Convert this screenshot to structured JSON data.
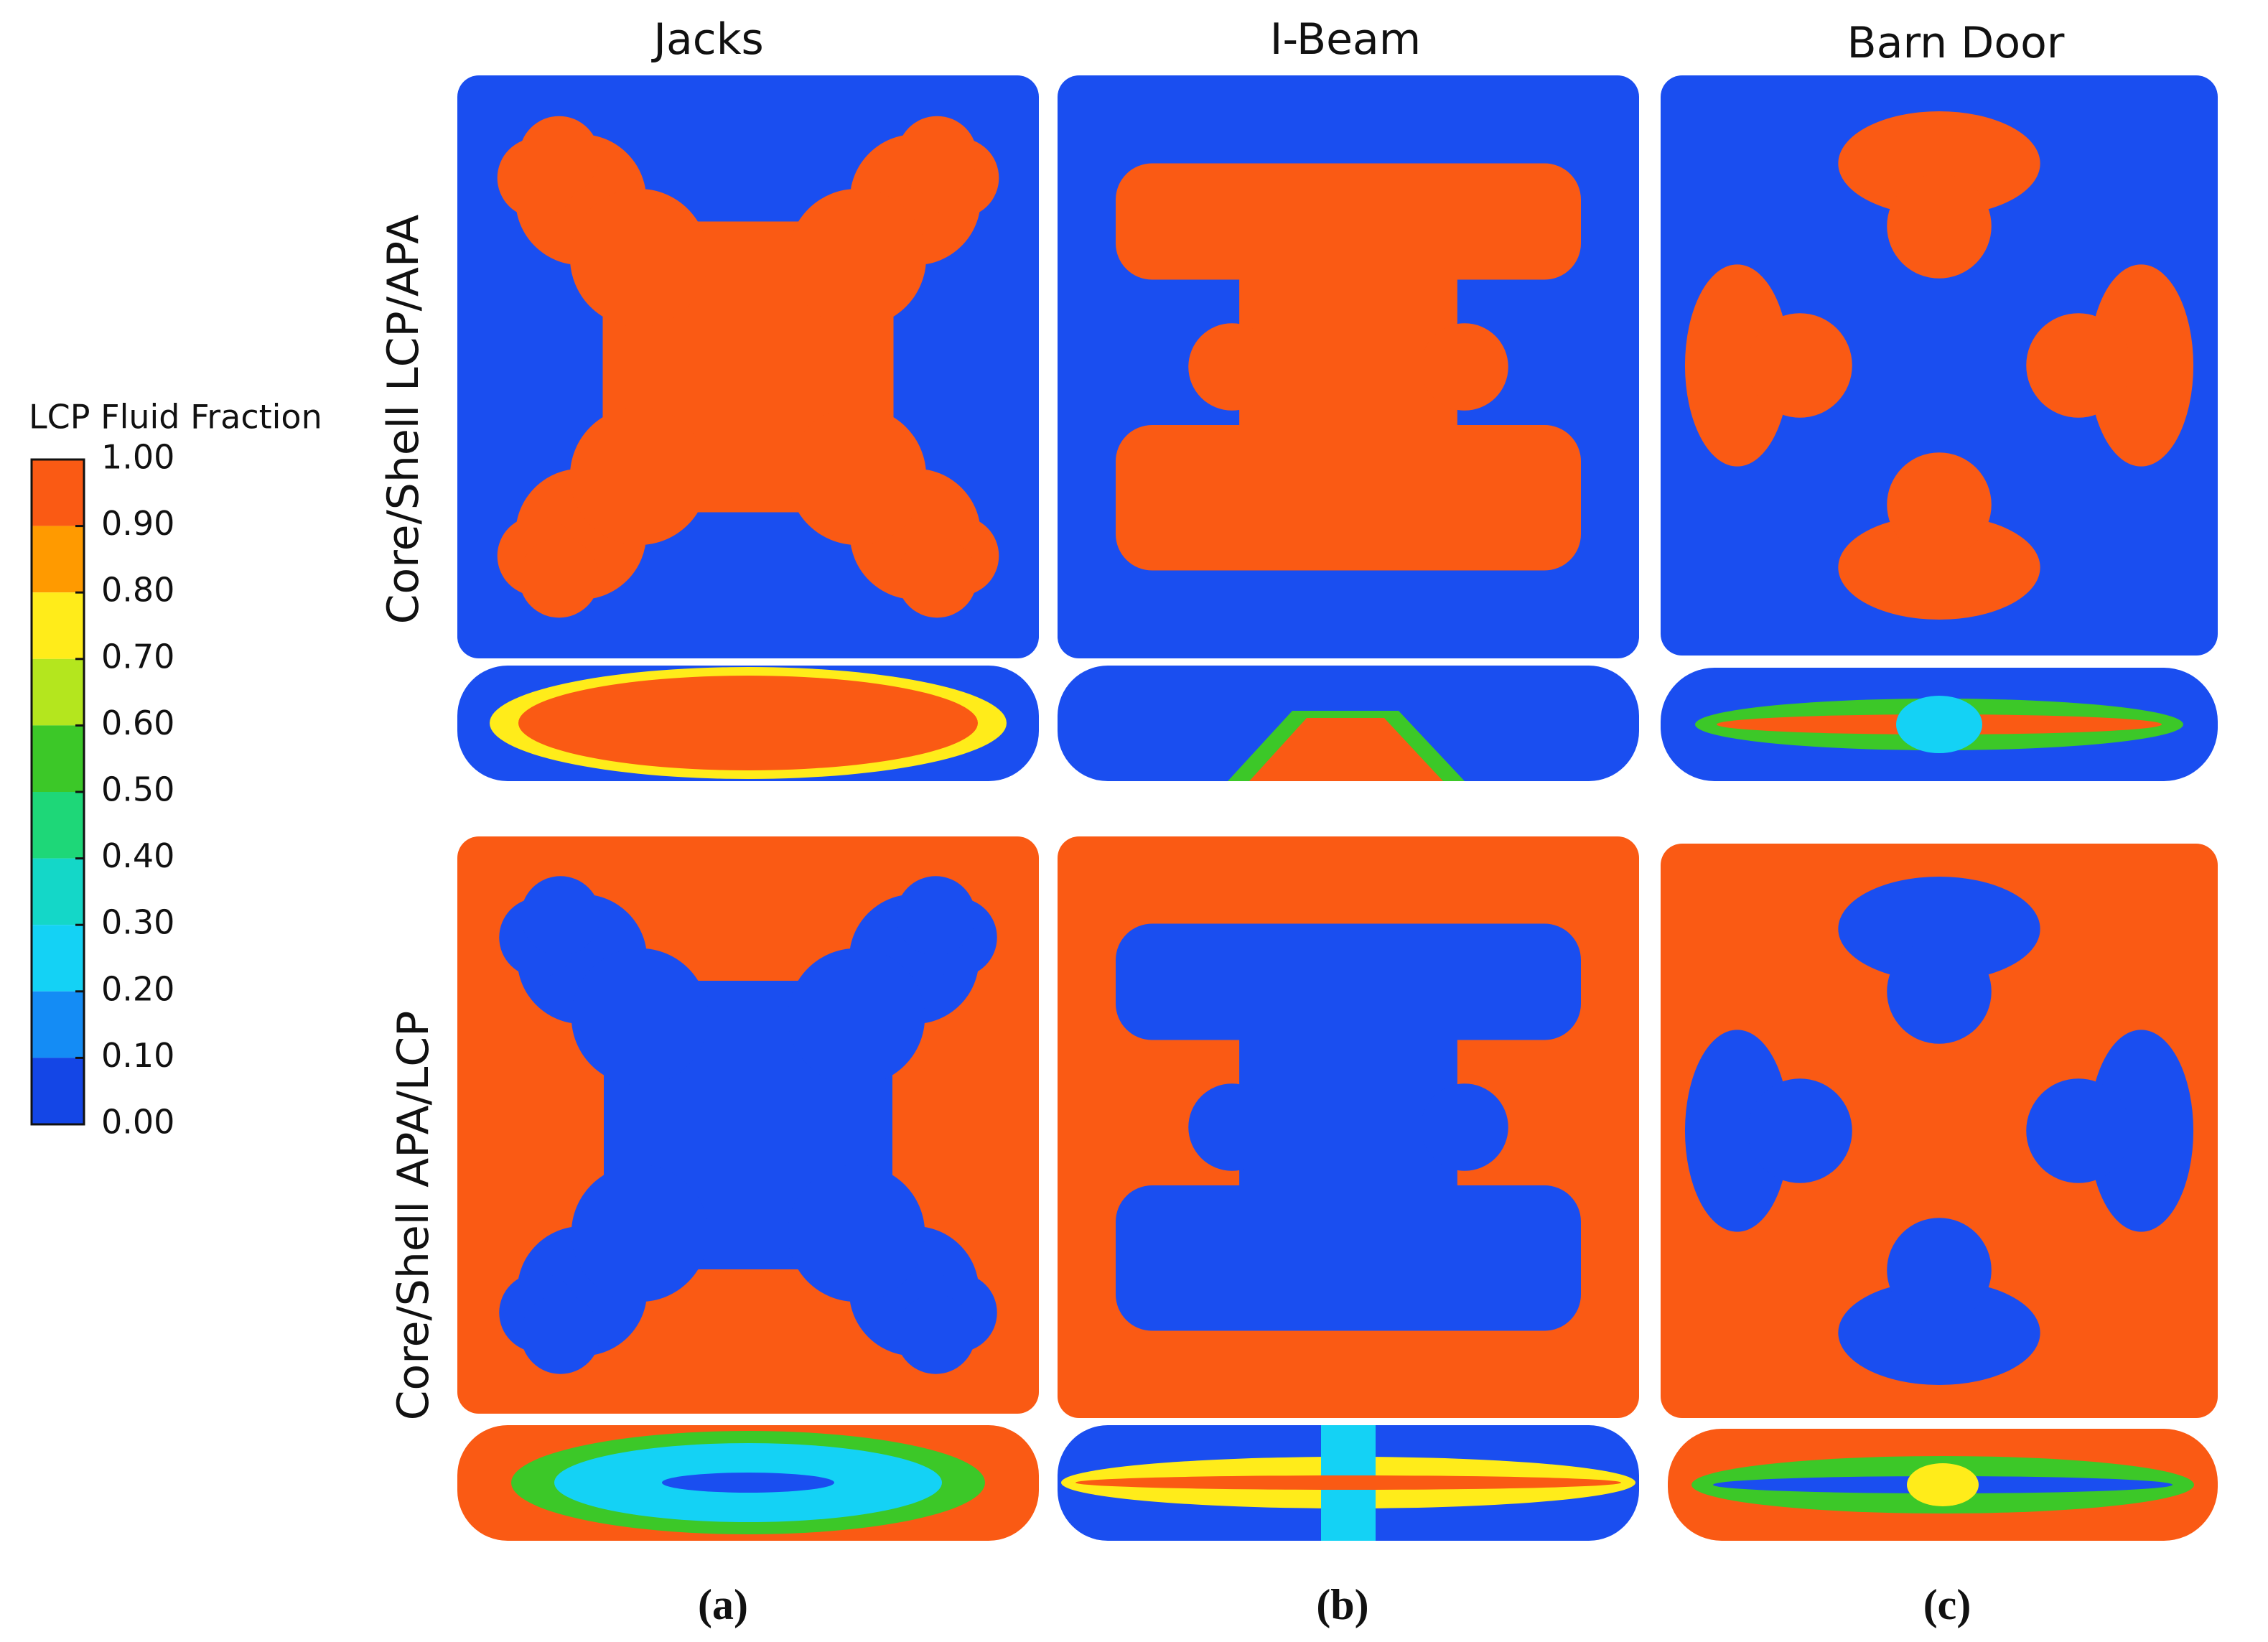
{
  "colorbar": {
    "title": "LCP Fluid Fraction",
    "ticks": [
      "1.00",
      "0.90",
      "0.80",
      "0.70",
      "0.60",
      "0.50",
      "0.40",
      "0.30",
      "0.20",
      "0.10",
      "0.00"
    ],
    "colors": [
      "#fa5a14",
      "#ff9a00",
      "#ffec1a",
      "#b4e61e",
      "#3cc828",
      "#1ed778",
      "#14d7c8",
      "#14d2f5",
      "#148cf5",
      "#1446e6"
    ]
  },
  "columns": [
    "Jacks",
    "I-Beam",
    "Barn Door"
  ],
  "rows": [
    "Core/Shell LCP/APA",
    "Core/Shell APA/LCP"
  ],
  "panel_labels": [
    "(a)",
    "(b)",
    "(c)"
  ]
}
